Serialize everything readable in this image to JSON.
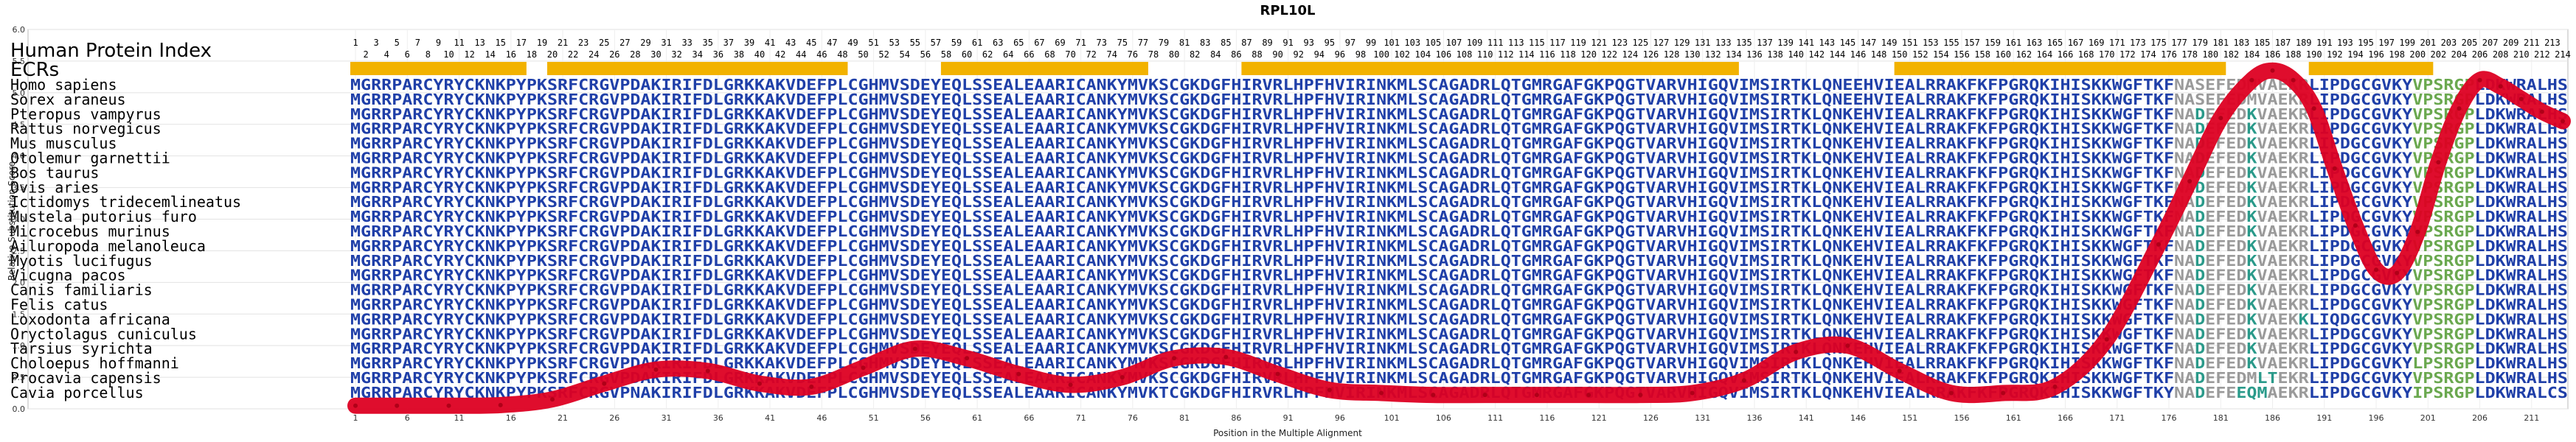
{
  "chart_data": {
    "type": "line",
    "title": "RPL10L",
    "xlabel": "Position in the Multiple Alignment",
    "ylabel": "Relative Substitution Score",
    "ylim": [
      0.0,
      6.0
    ],
    "yticks": [
      "0.0",
      "0.5",
      "1.0",
      "1.5",
      "2.0",
      "2.5",
      "3.0",
      "3.5",
      "4.0",
      "4.5",
      "5.0",
      "5.5",
      "6.0"
    ],
    "xlim": [
      1,
      214
    ],
    "xticks": [
      1,
      6,
      11,
      16,
      21,
      26,
      31,
      36,
      41,
      46,
      51,
      56,
      61,
      66,
      71,
      76,
      81,
      86,
      91,
      96,
      101,
      106,
      111,
      116,
      121,
      126,
      131,
      136,
      141,
      146,
      151,
      156,
      161,
      166,
      171,
      176,
      181,
      186,
      191,
      196,
      201,
      206,
      211
    ],
    "grid": true,
    "header_label": "Human Protein Index",
    "ecr_label": "ECRs",
    "human_index_top": [
      1,
      3,
      5,
      7,
      9,
      11,
      13,
      15,
      17,
      19,
      21,
      23,
      25,
      27,
      29,
      31,
      33,
      35,
      37,
      39,
      41,
      43,
      45,
      47,
      49,
      51,
      53,
      55,
      57,
      59,
      61,
      63,
      65,
      67,
      69,
      71,
      73,
      75,
      77,
      79,
      81,
      83,
      85,
      87,
      89,
      91,
      93,
      95,
      97,
      99,
      101,
      103,
      105,
      107,
      109,
      111,
      113,
      115,
      117,
      119,
      121,
      123,
      125,
      127,
      129,
      131,
      133,
      135,
      137,
      139,
      141,
      143,
      145,
      147,
      149,
      151,
      153,
      155,
      157,
      159,
      161,
      163,
      165,
      167,
      169,
      171,
      173,
      175,
      177,
      179,
      181,
      183,
      185,
      187,
      189,
      191,
      193,
      195,
      197,
      199,
      201,
      203,
      205,
      207,
      209,
      211,
      213
    ],
    "human_index_bottom": [
      2,
      4,
      6,
      8,
      10,
      12,
      14,
      16,
      18,
      20,
      22,
      24,
      26,
      28,
      30,
      32,
      34,
      36,
      38,
      40,
      42,
      44,
      46,
      48,
      50,
      52,
      54,
      56,
      58,
      60,
      62,
      64,
      66,
      68,
      70,
      72,
      74,
      76,
      78,
      80,
      82,
      84,
      86,
      88,
      90,
      92,
      94,
      96,
      98,
      100,
      102,
      104,
      106,
      108,
      110,
      112,
      114,
      116,
      118,
      120,
      122,
      124,
      126,
      128,
      130,
      132,
      134,
      136,
      138,
      140,
      142,
      144,
      146,
      148,
      150,
      152,
      154,
      156,
      158,
      160,
      162,
      164,
      166,
      168,
      170,
      172,
      174,
      176,
      178,
      180,
      182,
      184,
      186,
      188,
      190,
      192,
      194,
      196,
      198,
      200,
      202,
      204,
      206,
      208,
      210,
      212,
      214
    ],
    "ecr_regions": [
      [
        1,
        17
      ],
      [
        20,
        48
      ],
      [
        58,
        77
      ],
      [
        87,
        134
      ],
      [
        150,
        181
      ],
      [
        190,
        201
      ]
    ],
    "species": [
      "Homo sapiens",
      "Sorex araneus",
      "Pteropus vampyrus",
      "Rattus norvegicus",
      "Mus musculus",
      "Otolemur garnettii",
      "Bos taurus",
      "Ovis aries",
      "Ictidomys tridecemlineatus",
      "Mustela putorius furo",
      "Microcebus murinus",
      "Ailuropoda melanoleuca",
      "Myotis lucifugus",
      "Vicugna pacos",
      "Canis familiaris",
      "Felis catus",
      "Loxodonta africana",
      "Oryctolagus cuniculus",
      "Tarsius syrichta",
      "Choloepus hoffmanni",
      "Procavia capensis",
      "Cavia porcellus"
    ],
    "sequences": [
      "MGRRPARCYRYCKNKPYPKSRFCRGVPDAKIRIFDLGRKKAKVDEFPLCGHMVSDEYEQLSSEALEAARICANKYMVKSCGKDGFHIRVRLHPFHVIRINKMLSCAGADRLQTGMRGAFGKPQGTVARVHIGQVIMSIRTKLQNEEHVIEALRRAKFKFPGRQKIHISKKWGFTKFNASEFEDMVAEKRLIPDGCGVKYVPSRGPLDKWRALHS",
      "MGRRPARCYRYCKNKPYPKSRFCRGVPDAKIRIFDLGRKKAKVDEFPLCGHMVSDEYEQLSSEALEAARICANKYMVKSCGKDGFHIRVRLHPFHVIRINKMLSCAGADRLQTGMRGAFGKPQGTVARVHIGQVIMSIRTKLQNEEHVIEALRRAKFKFPGRQKIHISKKWGFTKFNASEFEDMVAEKRLIPDGCGVKYVPSRGPLDKWRALHS",
      "MGRRPARCYRYCKNKPYPKSRFCRGVPDAKIRIFDLGRKKAKVDEFPLCGHMVSDEYEQLSSEALEAARICANKYMVKSCGKDGFHIRVRLHPFHVIRINKMLSCAGADRLQTGMRGAFGKPQGTVARVHIGQVIMSIRTKLQNKEHVIEALRRAKFKFPGRQKIHISKKWGFTKFNADEFEDKVAEKRLIPDGCGVKYVPSRGPLDKWRALHS",
      "MGRRPARCYRYCKNKPYPKSRFCRGVPDAKIRIFDLGRKKAKVDEFPLCGHMVSDEYEQLSSEALEAARICANKYMVKSCGKDGFHIRVRLHPFHVIRINKMLSCAGADRLQTGMRGAFGKPQGTVARVHIGQVIMSIRTKLQNKEHVIEALRRAKFKFPGRQKIHISKKWGFTKFNADEFEDKVAEKRLIPDGCGVKYVPSRGPLDKWRALHS",
      "MGRRPARCYRYCKNKPYPKSRFCRGVPDAKIRIFDLGRKKAKVDEFPLCGHMVSDEYEQLSSEALEAARICANKYMVKSCGKDGFHIRVRLHPFHVIRINKMLSCAGADRLQTGMRGAFGKPQGTVARVHIGQVIMSIRTKLQNKEHVIEALRRAKFKFPGRQKIHISKKWGFTKFNADEFEDKVAEKRLIPDGCGVKYVPSRGPLDKWRALHS",
      "MGRRPARCYRYCKNKPYPKSRFCRGVPDAKIRIFDLGRKKAKVDEFPLCGHMVSDEYEQLSSEALEAARICANKYMVKSCGKDGFHIRVRLHPFHVIRINKMLSCAGADRLQTGMRGAFGKPQGTVARVHIGQVIMSIRTKLQNKEHVIEALRRAKFKFPGRQKIHISKKWGFTKFNADEFEDKVAEKRLIPDGCGVKYVPSRGPLDKWRALHS",
      "MGRRPARCYRYCKNKPYPKSRFCRGVPDAKIRIFDLGRKKAKVDEFPLCGHMVSDEYEQLSSEALEAARICANKYMVKSCGKDGFHIRVRLHPFHVIRINKMLSCAGADRLQTGMRGAFGKPQGTVARVHIGQVIMSIRTKLQNKEHVIEALRRAKFKFPGRQKIHISKKWGFTKFNADEFEDKVAEKRLIPDGCGVKYVPSRGPLDKWRALHS",
      "MGRRPARCYRYCKNKPYPKSRFCRGVPDAKIRIFDLGRKKAKVDEFPLCGHMVSDEYEQLSSEALEAARICANKYMVKSCGKDGFHIRVRLHPFHVIRINKMLSCAGADRLQTGMRGAFGKPQGTVARVHIGQVIMSIRTKLQNKEHVIEALRRAKFKFPGRQKIHISKKWGFTKFNADEFEDKVAEKRLIPDGCGVKYVPSRGPLDKWRALHS",
      "MGRRPARCYRYCKNKPYPKSRFCRGVPDAKIRIFDLGRKKAKVDEFPLCGHMVSDEYEQLSSEALEAARICANKYMVKSCGKDGFHIRVRLHPFHVIRINKMLSCAGADRLQTGMRGAFGKPQGTVARVHIGQVIMSIRTKLQNKEHVIEALRRAKFKFPGRQKIHISKKWGFTKFNADEFEDKVAEKRLIPDGCGVKYVPSRGPLDKWRALHS",
      "MGRRPARCYRYCKNKPYPKSRFCRGVPDAKIRIFDLGRKKAKVDEFPLCGHMVSDEYEQLSSEALEAARICANKYMVKSCGKDGFHIRVRLHPFHVIRINKMLSCAGADRLQTGMRGAFGKPQGTVARVHIGQVIMSIRTKLQNKEHVIEALRRAKFKFPGRQKIHISKKWGFTKFNADEFEDKVAEKRLIPDGCGVKYVPSRGPLDKWRALHS",
      "MGRRPARCYRYCKNKPYPKSRFCRGVPDAKIRIFDLGRKKAKVDEFPLCGHMVSDEYEQLSSEALEAARICANKYMVKSCGKDGFHIRVRLHPFHVIRINKMLSCAGADRLQTGMRGAFGKPQGTVARVHIGQVIMSIRTKLQNKEHVIEALRRAKFKFPGRQKIHISKKWGFTKFNADEFEDKVAEKRLIPDGCGVKYVPSRGPLDKWRALHS",
      "MGRRPARCYRYCKNKPYPKSRFCRGVPDAKIRIFDLGRKKAKVDEFPLCGHMVSDEYEQLSSEALEAARICANKYMVKSCGKDGFHIRVRLHPFHVIRINKMLSCAGADRLQTGMRGAFGKPQGTVARVHIGQVIMSIRTKLQNKEHVIEALRRAKFKFPGRQKIHISKKWGFTKFNADEFEDKVAEKRLIPDGCGVKYVPSRGPLDKWRALHS",
      "MGRRPARCYRYCKNKPYPKSRFCRGVPDAKIRIFDLGRKKAKVDEFPLCGHMVSDEYEQLSSEALEAARICANKYMVKSCGKDGFHIRVRLHPFHVIRINKMLSCAGADRLQTGMRGAFGKPQGTVARVHIGQVIMSIRTKLQNKEHVIEALRRAKFKFPGRQKIHISKKWGFTKFNADEFEDKVAEKRLIPDGCGVKYVPSRGPLDKWRALHS",
      "MGRRPARCYRYCKNKPYPKSRFCRGVPDAKIRIFDLGRKKAKVDEFPLCGHMVSDEYEQLSSEALEAARICANKYMVKSCGKDGFHIRVRLHPFHVIRINKMLSCAGADRLQTGMRGAFGKPQGTVARVHIGQVIMSIRTKLQNKEHVIEALRRAKFKFPGRQKIHISKKWGFTKFNADEFEDKVAEKRLIPDGCGVKYVPSRGPLDKWRALHS",
      "MGRRPARCYRYCKNKPYPKSRFCRGVPDAKIRIFDLGRKKAKVDEFPLCGHMVSDEYEQLSSEALEAARICANKYMVKSCGKDGFHIRVRLHPFHVIRINKMLSCAGADRLQTGMRGAFGKPQGTVARVHIGQVIMSIRTKLQNKEHVIEALRRAKFKFPGRQKIHISKKWGFTKFNADEFEDKVAEKRLIPDGCGVKYVPSRGPLDKWRALHS",
      "MGRRPARCYRYCKNKPYPKSRFCRGVPDAKIRIFDLGRKKAKVDEFPLCGHMVSDEYEQLSSEALEAARICANKYMVKSCGKDGFHIRVRLHPFHVIRINKMLSCAGADRLQTGMRGAFGKPQGTVARVHIGQVIMSIRTKLQNKEHVIEALRRAKFKFPGRQKIHISKKWGFTKFNADEFEDKVAEKRLIPDGCGVKYVPSRGPLDKWRALHS",
      "MGRRPARCYRYCKNKPYPKSRFCRGVPDAKIRIFDLGRKKAKVDEFPLCGHMVSDEYEQLSSEALEAARICANKYMVKSCGKDGFHIRVRLHPFHVIRINKMLSCAGADRLQTGMRGAFGKPQGTVARVHIGQVIMSIRTKLQNKEHVIEALRRAKFKFPGRQKIHISKKWGFTKFNADEFEDKVAEKKLIQDGCGVKYVPSRGPLDKWRALHS",
      "MGRRPARCYRYCKNKPYPKSRFCRGVPDAKIRIFDLGRKKAKVDEFPLCGHMVSDEYEQLSSEALEAARICANKYMVKSCGKDGFHIRVRLHPFHVIRINKMLSCAGADRLQTGMRGAFGKPQGTVARVHIGQVIMSIRTKLQNKEHVIEALRRAKFKFPGRQKIHISKKWGFTKFNADEFEDKVAEKRLIPDGCGVKYVPSRGPLDKWRALHS",
      "MGRRPARCYRYCKNKPYPKSRFCRGVPDAKIRIFDLGRKKAKVDEFPLCGHMVSDEYEQLSSEALEAARICANKYMVKSCGKDGFHIRVRLHPFHVIRINKMLSCAGADRLQTGMRGAFGKPQGTVARVHIGQVIMSIRTKLQNKEHVIEALRRAKFKFPGRQKIHISKKWGFTKFNADEFEDKVAEKRLIPDGCGVKYVPSRGPLDKWRALHS",
      "MGRRPARCYRYCKNKPYPKSRFCRGVPDAKIRIFDLGRKKAKVDEFPLCGHMVSDEYEQLSSEALEAARICANKYMVKSCGKDGFHIRVRLHPFHVIRINKMLSCAGADRLQTGMRGAFGKPQGTVARVHIGQVIMSIRTKLQNKEHVIEALRRAKFKFPGRQKIHISKKWGFTKFNADEFEDKVAEKRLIPDGCGVKYLPSRGPLDKWRALHS",
      "MGRRPARCYRYCKNKPYPKSRFCRGVPDAKIRIFDLGRKKAKVDEFPLCGHMVSDEYEQLSSEALEAARICANKYMVKSCGKDGFHIRVRLHPFHVIRINKMLSCAGADRLQTGMRGAFGKPQGTVARVHIGQVIMSIRTKLQNKEHVIEALRRAKFKFPGRQKIHISKKWGFTKFNADEFEDMLTEKRLIPDGCGVKYVPSRGPLDKWRALHS",
      "MGRRPARCYRYCKNKPYPKSRFCRGVPNAKIRIFDLGRKKAKVDEFPLCGHMVSDEYEQLSSEALEAARICANKYMVKTCGKDGFHIRVRLHPFHVIRINKMLSCAGADRLQTGMRGAFGKPQGTVARVHIGQVIMSIRTKLQNKEHVIEALRRAKFKFPGRQKIHISKKWGFTKYNADEFEEQMAEKRLIPDGCGVKYIPSRGPLDKWRALCS"
    ],
    "series": [
      {
        "x": [
          1,
          5,
          10,
          15,
          20,
          25,
          30,
          35,
          40,
          45,
          50,
          55,
          60,
          65,
          70,
          75,
          80,
          85,
          90,
          95,
          100,
          105,
          110,
          115,
          120,
          125,
          130,
          135,
          140,
          145,
          150,
          155,
          160,
          165,
          170,
          175,
          178,
          181,
          184,
          186,
          188,
          190,
          192,
          194,
          196,
          198,
          200,
          202,
          204,
          206,
          208,
          210,
          212,
          214
        ],
        "values": [
          0.05,
          0.05,
          0.05,
          0.06,
          0.15,
          0.4,
          0.62,
          0.6,
          0.4,
          0.35,
          0.65,
          0.95,
          0.8,
          0.55,
          0.38,
          0.5,
          0.8,
          0.82,
          0.55,
          0.3,
          0.25,
          0.22,
          0.22,
          0.22,
          0.22,
          0.22,
          0.25,
          0.45,
          0.9,
          1.0,
          0.6,
          0.25,
          0.25,
          0.35,
          1.1,
          2.6,
          3.6,
          4.6,
          5.2,
          5.35,
          5.2,
          4.75,
          3.8,
          2.9,
          2.2,
          2.15,
          2.8,
          3.9,
          4.75,
          5.2,
          5.1,
          4.9,
          4.7,
          4.55
        ]
      }
    ],
    "line_color": "#dd0022",
    "ecr_color": "#f2b200"
  }
}
